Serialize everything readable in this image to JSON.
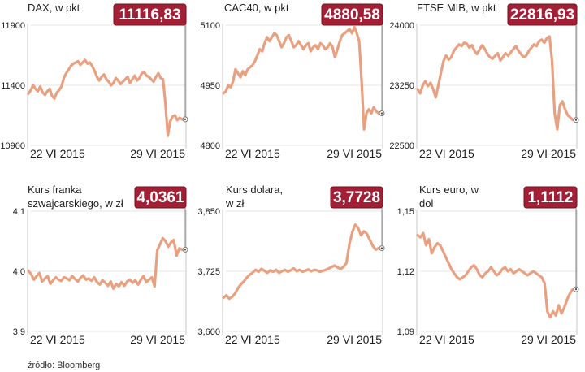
{
  "colors": {
    "line": "#e8a080",
    "badge": "#a31f35",
    "badge_text": "#ffffff",
    "frame": "#c8c8c8",
    "grid": "#e6e6e6",
    "text": "#222222"
  },
  "source": "źródło: Bloomberg",
  "chart_data": [
    {
      "type": "line",
      "title": "DAX, w pkt",
      "badge": "11116,83",
      "ylim": [
        10900,
        11900
      ],
      "yticks": [
        "11900",
        "11400",
        "10900"
      ],
      "x_labels": [
        "22 VI 2015",
        "29 VI 2015"
      ],
      "grid": true,
      "series": [
        {
          "values": [
            11330,
            11360,
            11400,
            11370,
            11350,
            11390,
            11340,
            11320,
            11350,
            11370,
            11310,
            11290,
            11340,
            11360,
            11390,
            11460,
            11500,
            11530,
            11560,
            11580,
            11590,
            11600,
            11570,
            11590,
            11610,
            11580,
            11590,
            11560,
            11520,
            11470,
            11440,
            11470,
            11490,
            11450,
            11430,
            11400,
            11420,
            11460,
            11440,
            11410,
            11430,
            11450,
            11470,
            11420,
            11450,
            11480,
            11440,
            11460,
            11500,
            11510,
            11480,
            11470,
            11450,
            11430,
            11470,
            11500,
            11460,
            11450,
            11250,
            10980,
            11100,
            11140,
            11150,
            11110,
            11130,
            11117
          ]
        }
      ]
    },
    {
      "type": "line",
      "title": "CAC40, w pkt",
      "badge": "4880,58",
      "ylim": [
        4800,
        5100
      ],
      "yticks": [
        "5100",
        "4950",
        "4800"
      ],
      "x_labels": [
        "22 VI 2015",
        "29 VI 2015"
      ],
      "grid": true,
      "series": [
        {
          "values": [
            4930,
            4935,
            4950,
            4945,
            4960,
            4990,
            4980,
            4970,
            4985,
            4975,
            4990,
            4995,
            5000,
            5010,
            5025,
            5040,
            5035,
            5055,
            5070,
            5060,
            5070,
            5080,
            5075,
            5060,
            5045,
            5055,
            5070,
            5075,
            5060,
            5045,
            5050,
            5060,
            5050,
            5040,
            5050,
            5055,
            5035,
            5045,
            5050,
            5040,
            5055,
            5050,
            5040,
            5045,
            5055,
            5045,
            5020,
            5040,
            5060,
            5075,
            5080,
            5085,
            5090,
            5080,
            5095,
            5080,
            5060,
            4960,
            4840,
            4880,
            4890,
            4880,
            4895,
            4885,
            4880
          ]
        }
      ]
    },
    {
      "type": "line",
      "title": "FTSE MIB, w pkt",
      "badge": "22816,93",
      "ylim": [
        22500,
        24000
      ],
      "yticks": [
        "24000",
        "23250",
        "22500"
      ],
      "x_labels": [
        "22 VI 2015",
        "29 VI 2015"
      ],
      "grid": true,
      "series": [
        {
          "values": [
            23200,
            23150,
            23250,
            23300,
            23240,
            23280,
            23200,
            23100,
            23250,
            23400,
            23550,
            23620,
            23570,
            23600,
            23680,
            23720,
            23760,
            23740,
            23780,
            23770,
            23720,
            23750,
            23680,
            23640,
            23700,
            23750,
            23700,
            23640,
            23600,
            23580,
            23620,
            23650,
            23560,
            23600,
            23650,
            23620,
            23660,
            23700,
            23740,
            23680,
            23640,
            23600,
            23620,
            23680,
            23720,
            23760,
            23740,
            23800,
            23820,
            23780,
            23840,
            23860,
            23550,
            22900,
            22700,
            23000,
            23050,
            22950,
            22880,
            22850,
            22817
          ]
        }
      ]
    },
    {
      "type": "line",
      "title": "Kurs franka szwajcarskiego, w zł",
      "badge": "4,0361",
      "ylim": [
        3.9,
        4.1
      ],
      "yticks": [
        "4,1",
        "4,0",
        "3,9"
      ],
      "x_labels": [
        "22 VI 2015",
        "29 VI 2015"
      ],
      "grid": true,
      "series": [
        {
          "values": [
            4.001,
            3.995,
            3.986,
            3.992,
            3.997,
            3.983,
            3.988,
            3.992,
            3.979,
            3.985,
            3.99,
            3.986,
            3.984,
            3.99,
            3.988,
            3.985,
            3.992,
            3.987,
            3.983,
            3.989,
            3.993,
            3.986,
            3.988,
            3.984,
            3.99,
            3.982,
            3.978,
            3.985,
            3.981,
            3.976,
            3.983,
            3.971,
            3.979,
            3.975,
            3.982,
            3.976,
            3.983,
            3.986,
            3.981,
            3.985,
            3.978,
            3.986,
            3.992,
            3.982,
            3.986,
            3.99,
            3.975,
            4.035,
            4.045,
            4.055,
            4.05,
            4.041,
            4.048,
            4.052,
            4.026,
            4.038,
            4.036
          ]
        }
      ]
    },
    {
      "type": "line",
      "title": "Kurs dolara, w zł",
      "badge": "3,7728",
      "ylim": [
        3.6,
        3.85
      ],
      "yticks": [
        "3,850",
        "3,725",
        "3,600"
      ],
      "x_labels": [
        "22 VI 2015",
        "29 VI 2015"
      ],
      "grid": true,
      "series": [
        {
          "values": [
            3.67,
            3.675,
            3.668,
            3.672,
            3.679,
            3.69,
            3.698,
            3.704,
            3.712,
            3.718,
            3.722,
            3.728,
            3.724,
            3.73,
            3.726,
            3.722,
            3.727,
            3.724,
            3.728,
            3.722,
            3.725,
            3.728,
            3.724,
            3.727,
            3.731,
            3.725,
            3.728,
            3.724,
            3.726,
            3.729,
            3.725,
            3.728,
            3.727,
            3.724,
            3.726,
            3.728,
            3.731,
            3.734,
            3.737,
            3.733,
            3.73,
            3.734,
            3.742,
            3.781,
            3.806,
            3.822,
            3.815,
            3.8,
            3.808,
            3.803,
            3.79,
            3.778,
            3.77,
            3.773
          ]
        }
      ]
    },
    {
      "type": "line",
      "title": "Kurs euro, w dol",
      "badge": "1,1112",
      "ylim": [
        1.09,
        1.15
      ],
      "yticks": [
        "1,15",
        "1,12",
        "1,09"
      ],
      "x_labels": [
        "22 VI 2015",
        "29 VI 2015"
      ],
      "grid": true,
      "series": [
        {
          "values": [
            1.138,
            1.137,
            1.139,
            1.133,
            1.136,
            1.129,
            1.132,
            1.134,
            1.133,
            1.13,
            1.127,
            1.124,
            1.121,
            1.119,
            1.117,
            1.116,
            1.117,
            1.118,
            1.12,
            1.122,
            1.123,
            1.121,
            1.118,
            1.117,
            1.119,
            1.12,
            1.122,
            1.12,
            1.118,
            1.119,
            1.121,
            1.122,
            1.12,
            1.121,
            1.119,
            1.12,
            1.121,
            1.12,
            1.119,
            1.118,
            1.119,
            1.12,
            1.119,
            1.118,
            1.117,
            1.114,
            1.1,
            1.097,
            1.1,
            1.098,
            1.103,
            1.099,
            1.102,
            1.106,
            1.109,
            1.111
          ]
        }
      ]
    }
  ]
}
